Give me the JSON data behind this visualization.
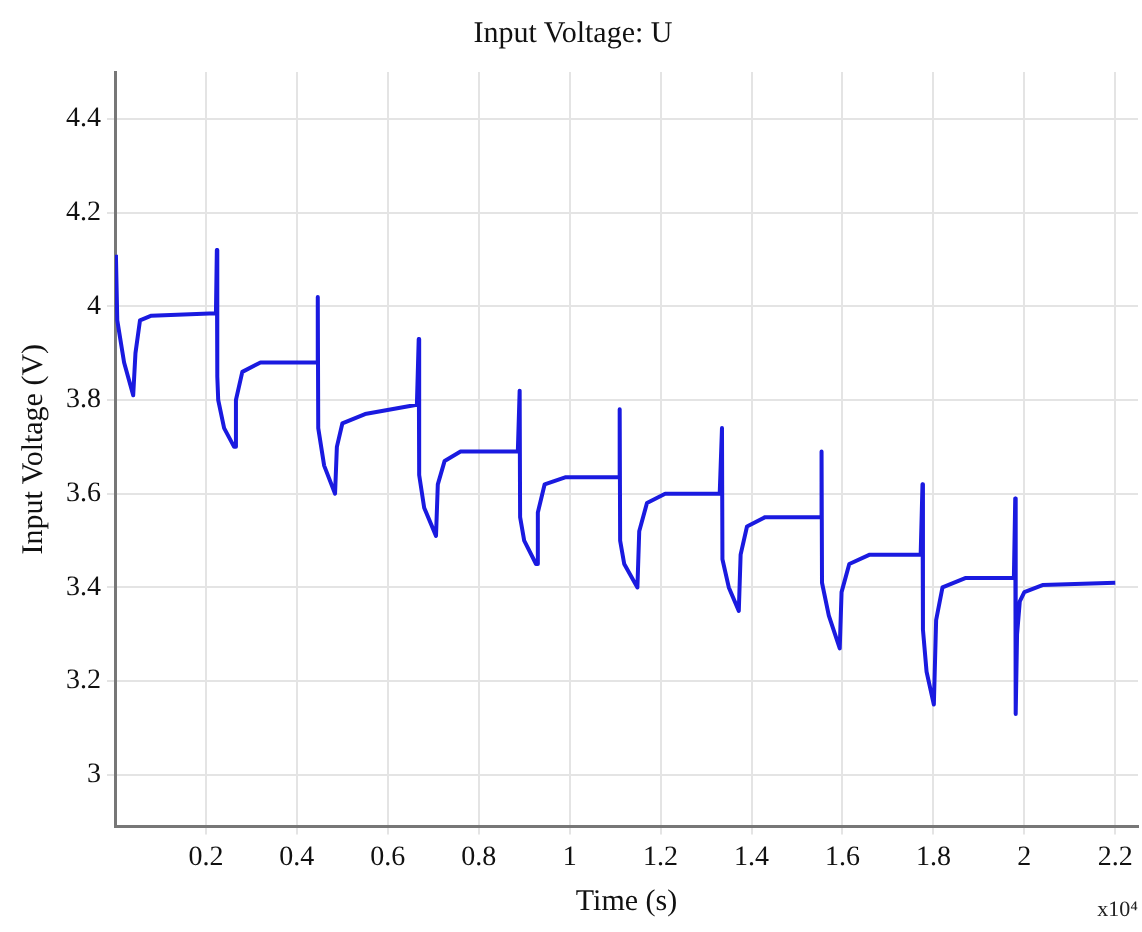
{
  "chart_data": {
    "type": "line",
    "title": "Input Voltage: U",
    "xlabel": "Time (s)",
    "ylabel": "Input Voltage (V)",
    "annotations": [
      "x10⁴"
    ],
    "xlim": [
      0,
      2.25
    ],
    "xticks": [
      0.2,
      0.4,
      0.6,
      0.8,
      1,
      1.2,
      1.4,
      1.6,
      1.8,
      2,
      2.2
    ],
    "ylim": [
      2.89,
      4.5
    ],
    "yticks": [
      3,
      3.2,
      3.4,
      3.6,
      3.8,
      4,
      4.2,
      4.4
    ],
    "grid": true,
    "legend": false,
    "marker": "none",
    "line_style": "solid",
    "series": [
      {
        "color": "#1a1ae0",
        "x": [
          0.002,
          0.005,
          0.02,
          0.04,
          0.045,
          0.055,
          0.08,
          0.222,
          0.224,
          0.225,
          0.227,
          0.24,
          0.262,
          0.266,
          0.28,
          0.32,
          0.443,
          0.446,
          0.447,
          0.46,
          0.484,
          0.488,
          0.5,
          0.55,
          0.664,
          0.668,
          0.669,
          0.68,
          0.706,
          0.71,
          0.725,
          0.76,
          0.886,
          0.89,
          0.891,
          0.9,
          0.926,
          0.93,
          0.945,
          0.99,
          1.107,
          1.11,
          1.111,
          1.12,
          1.149,
          1.153,
          1.17,
          1.21,
          1.33,
          1.335,
          1.336,
          1.35,
          1.372,
          1.376,
          1.39,
          1.43,
          1.551,
          1.554,
          1.555,
          1.57,
          1.594,
          1.598,
          1.615,
          1.66,
          1.772,
          1.776,
          1.777,
          1.785,
          1.801,
          1.806,
          1.82,
          1.87,
          1.977,
          1.98,
          1.981,
          1.984,
          1.99,
          2,
          2.04,
          2.2
        ],
        "values": [
          4.11,
          3.97,
          3.88,
          3.81,
          3.9,
          3.97,
          3.98,
          3.985,
          4.12,
          3.85,
          3.8,
          3.74,
          3.7,
          3.8,
          3.86,
          3.88,
          3.88,
          4.02,
          3.74,
          3.66,
          3.6,
          3.7,
          3.75,
          3.77,
          3.79,
          3.93,
          3.64,
          3.57,
          3.51,
          3.62,
          3.67,
          3.69,
          3.69,
          3.82,
          3.55,
          3.5,
          3.45,
          3.56,
          3.62,
          3.635,
          3.635,
          3.78,
          3.5,
          3.45,
          3.4,
          3.52,
          3.58,
          3.6,
          3.6,
          3.74,
          3.46,
          3.4,
          3.35,
          3.47,
          3.53,
          3.55,
          3.55,
          3.69,
          3.41,
          3.34,
          3.27,
          3.39,
          3.45,
          3.47,
          3.47,
          3.62,
          3.31,
          3.22,
          3.15,
          3.33,
          3.4,
          3.42,
          3.42,
          3.59,
          3.13,
          3.3,
          3.37,
          3.39,
          3.405,
          3.41
        ]
      }
    ]
  }
}
